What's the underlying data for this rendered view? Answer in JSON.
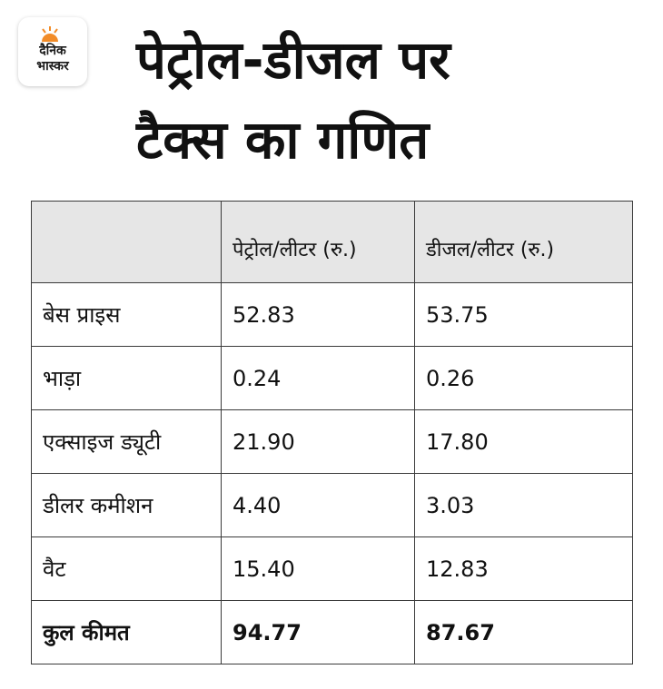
{
  "brand": {
    "line1": "दैनिक",
    "line2": "भास्कर",
    "accent_color": "#f28c28"
  },
  "title": {
    "line1": "पेट्रोल-डीजल पर",
    "line2": "टैक्स का गणित"
  },
  "table": {
    "headers": [
      "",
      "पेट्रोल/लीटर (रु.)",
      "डीजल/लीटर (रु.)"
    ],
    "rows": [
      {
        "label": "बेस प्राइस",
        "petrol": "52.83",
        "diesel": "53.75"
      },
      {
        "label": "भाड़ा",
        "petrol": "0.24",
        "diesel": "0.26"
      },
      {
        "label": "एक्साइज ड्यूटी",
        "petrol": "21.90",
        "diesel": "17.80"
      },
      {
        "label": "डीलर कमीशन",
        "petrol": "4.40",
        "diesel": "3.03"
      },
      {
        "label": "वैट",
        "petrol": "15.40",
        "diesel": "12.83"
      }
    ],
    "total": {
      "label": "कुल कीमत",
      "petrol": "94.77",
      "diesel": "87.67"
    }
  }
}
